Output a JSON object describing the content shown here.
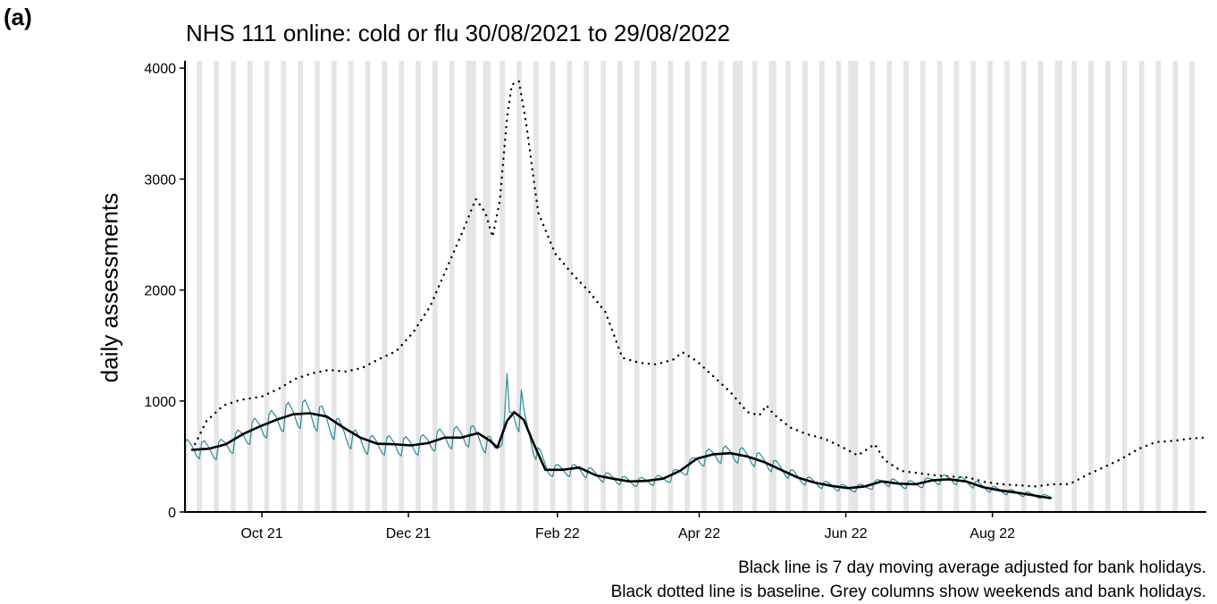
{
  "panel_label": "(a)",
  "caption": {
    "line1": "Black line is 7 day moving average adjusted for bank holidays.",
    "line2": "Black dotted line is baseline. Grey columns show weekends and bank holidays."
  },
  "colors": {
    "daily": "#2a8a99",
    "moving_average": "#000000",
    "baseline": "#000000",
    "weekend_columns": "#e5e5e5"
  },
  "chart_data": {
    "type": "line",
    "title": "NHS 111 online: cold or flu 30/08/2021 to 29/08/2022",
    "xlabel": "",
    "ylabel": "daily assessments",
    "x_range": [
      "2021-08-30",
      "2022-10-29"
    ],
    "ylim": [
      0,
      4050
    ],
    "y_ticks": [
      0,
      1000,
      2000,
      3000,
      4000
    ],
    "x_ticks": [
      {
        "date": "2021-10-01",
        "label": "Oct 21"
      },
      {
        "date": "2021-12-01",
        "label": "Dec 21"
      },
      {
        "date": "2022-02-01",
        "label": "Feb 22"
      },
      {
        "date": "2022-04-01",
        "label": "Apr 22"
      },
      {
        "date": "2022-06-01",
        "label": "Jun 22"
      },
      {
        "date": "2022-08-01",
        "label": "Aug 22"
      }
    ],
    "grid": false,
    "weekend_columns": true,
    "bank_holidays": [
      "2021-08-30",
      "2021-12-27",
      "2021-12-28",
      "2022-01-03",
      "2022-04-15",
      "2022-04-18",
      "2022-05-02",
      "2022-06-02",
      "2022-06-03",
      "2022-08-29"
    ],
    "series": [
      {
        "style": "dotted",
        "points": [
          [
            "2021-09-02",
            560
          ],
          [
            "2021-09-08",
            820
          ],
          [
            "2021-09-15",
            960
          ],
          [
            "2021-09-22",
            1010
          ],
          [
            "2021-10-01",
            1040
          ],
          [
            "2021-10-08",
            1110
          ],
          [
            "2021-10-15",
            1200
          ],
          [
            "2021-10-22",
            1250
          ],
          [
            "2021-10-29",
            1280
          ],
          [
            "2021-11-05",
            1265
          ],
          [
            "2021-11-12",
            1300
          ],
          [
            "2021-11-19",
            1380
          ],
          [
            "2021-11-26",
            1450
          ],
          [
            "2021-12-03",
            1620
          ],
          [
            "2021-12-10",
            1850
          ],
          [
            "2021-12-17",
            2200
          ],
          [
            "2021-12-24",
            2550
          ],
          [
            "2021-12-29",
            2820
          ],
          [
            "2022-01-02",
            2700
          ],
          [
            "2022-01-05",
            2480
          ],
          [
            "2022-01-08",
            2800
          ],
          [
            "2022-01-11",
            3550
          ],
          [
            "2022-01-13",
            3850
          ],
          [
            "2022-01-16",
            3880
          ],
          [
            "2022-01-19",
            3500
          ],
          [
            "2022-01-24",
            2700
          ],
          [
            "2022-01-31",
            2330
          ],
          [
            "2022-02-07",
            2150
          ],
          [
            "2022-02-14",
            1990
          ],
          [
            "2022-02-21",
            1800
          ],
          [
            "2022-02-28",
            1390
          ],
          [
            "2022-03-07",
            1345
          ],
          [
            "2022-03-14",
            1330
          ],
          [
            "2022-03-21",
            1370
          ],
          [
            "2022-03-25",
            1440
          ],
          [
            "2022-03-31",
            1360
          ],
          [
            "2022-04-07",
            1220
          ],
          [
            "2022-04-14",
            1080
          ],
          [
            "2022-04-21",
            900
          ],
          [
            "2022-04-26",
            870
          ],
          [
            "2022-04-29",
            960
          ],
          [
            "2022-05-02",
            880
          ],
          [
            "2022-05-09",
            760
          ],
          [
            "2022-05-16",
            700
          ],
          [
            "2022-05-23",
            660
          ],
          [
            "2022-05-30",
            590
          ],
          [
            "2022-06-06",
            510
          ],
          [
            "2022-06-13",
            610
          ],
          [
            "2022-06-17",
            470
          ],
          [
            "2022-06-24",
            370
          ],
          [
            "2022-07-01",
            350
          ],
          [
            "2022-07-08",
            330
          ],
          [
            "2022-07-15",
            320
          ],
          [
            "2022-07-22",
            310
          ],
          [
            "2022-07-29",
            270
          ],
          [
            "2022-08-05",
            250
          ],
          [
            "2022-08-12",
            240
          ],
          [
            "2022-08-19",
            230
          ],
          [
            "2022-08-26",
            250
          ],
          [
            "2022-09-02",
            250
          ],
          [
            "2022-09-09",
            330
          ],
          [
            "2022-09-16",
            400
          ],
          [
            "2022-09-23",
            470
          ],
          [
            "2022-10-01",
            570
          ],
          [
            "2022-10-08",
            630
          ],
          [
            "2022-10-15",
            640
          ],
          [
            "2022-10-22",
            660
          ],
          [
            "2022-10-28",
            670
          ]
        ]
      },
      {
        "style": "daily",
        "base": [
          [
            "2021-08-30",
            580
          ],
          [
            "2021-09-12",
            560
          ],
          [
            "2021-09-20",
            640
          ],
          [
            "2021-09-27",
            740
          ],
          [
            "2021-10-04",
            800
          ],
          [
            "2021-10-11",
            870
          ],
          [
            "2021-10-18",
            900
          ],
          [
            "2021-10-25",
            860
          ],
          [
            "2021-11-01",
            760
          ],
          [
            "2021-11-08",
            660
          ],
          [
            "2021-11-15",
            610
          ],
          [
            "2021-11-22",
            610
          ],
          [
            "2021-11-29",
            600
          ],
          [
            "2021-12-06",
            610
          ],
          [
            "2021-12-13",
            660
          ],
          [
            "2021-12-20",
            680
          ],
          [
            "2021-12-27",
            700
          ],
          [
            "2022-01-03",
            620
          ],
          [
            "2022-01-06",
            560
          ],
          [
            "2022-01-10",
            780
          ],
          [
            "2022-01-14",
            900
          ],
          [
            "2022-01-18",
            820
          ],
          [
            "2022-01-22",
            600
          ],
          [
            "2022-01-28",
            380
          ],
          [
            "2022-02-04",
            380
          ],
          [
            "2022-02-11",
            380
          ],
          [
            "2022-02-18",
            330
          ],
          [
            "2022-02-25",
            300
          ],
          [
            "2022-03-04",
            270
          ],
          [
            "2022-03-11",
            280
          ],
          [
            "2022-03-18",
            300
          ],
          [
            "2022-03-25",
            370
          ],
          [
            "2022-04-01",
            480
          ],
          [
            "2022-04-08",
            520
          ],
          [
            "2022-04-15",
            530
          ],
          [
            "2022-04-22",
            500
          ],
          [
            "2022-04-29",
            450
          ],
          [
            "2022-05-06",
            380
          ],
          [
            "2022-05-13",
            300
          ],
          [
            "2022-05-20",
            260
          ],
          [
            "2022-05-27",
            230
          ],
          [
            "2022-06-03",
            210
          ],
          [
            "2022-06-10",
            230
          ],
          [
            "2022-06-17",
            280
          ],
          [
            "2022-06-24",
            250
          ],
          [
            "2022-07-01",
            250
          ],
          [
            "2022-07-08",
            290
          ],
          [
            "2022-07-15",
            300
          ],
          [
            "2022-07-22",
            270
          ],
          [
            "2022-07-29",
            220
          ],
          [
            "2022-08-05",
            190
          ],
          [
            "2022-08-12",
            170
          ],
          [
            "2022-08-19",
            150
          ],
          [
            "2022-08-26",
            130
          ]
        ],
        "spikes": [
          [
            "2022-01-11",
            1250
          ],
          [
            "2022-01-12",
            900
          ],
          [
            "2022-01-17",
            1100
          ]
        ]
      },
      {
        "style": "solid",
        "points": [
          [
            "2021-09-02",
            560
          ],
          [
            "2021-09-09",
            570
          ],
          [
            "2021-09-16",
            610
          ],
          [
            "2021-09-23",
            700
          ],
          [
            "2021-09-30",
            770
          ],
          [
            "2021-10-07",
            830
          ],
          [
            "2021-10-14",
            880
          ],
          [
            "2021-10-21",
            890
          ],
          [
            "2021-10-28",
            860
          ],
          [
            "2021-11-04",
            760
          ],
          [
            "2021-11-11",
            670
          ],
          [
            "2021-11-18",
            615
          ],
          [
            "2021-11-25",
            610
          ],
          [
            "2021-12-02",
            600
          ],
          [
            "2021-12-09",
            620
          ],
          [
            "2021-12-16",
            670
          ],
          [
            "2021-12-23",
            670
          ],
          [
            "2021-12-30",
            710
          ],
          [
            "2022-01-04",
            640
          ],
          [
            "2022-01-07",
            580
          ],
          [
            "2022-01-11",
            820
          ],
          [
            "2022-01-14",
            900
          ],
          [
            "2022-01-18",
            830
          ],
          [
            "2022-01-22",
            620
          ],
          [
            "2022-01-27",
            380
          ],
          [
            "2022-02-03",
            380
          ],
          [
            "2022-02-10",
            400
          ],
          [
            "2022-02-17",
            330
          ],
          [
            "2022-02-24",
            300
          ],
          [
            "2022-03-03",
            275
          ],
          [
            "2022-03-10",
            280
          ],
          [
            "2022-03-17",
            300
          ],
          [
            "2022-03-24",
            370
          ],
          [
            "2022-03-31",
            480
          ],
          [
            "2022-04-07",
            520
          ],
          [
            "2022-04-14",
            530
          ],
          [
            "2022-04-21",
            500
          ],
          [
            "2022-04-28",
            450
          ],
          [
            "2022-05-05",
            380
          ],
          [
            "2022-05-12",
            310
          ],
          [
            "2022-05-19",
            265
          ],
          [
            "2022-05-26",
            235
          ],
          [
            "2022-06-02",
            215
          ],
          [
            "2022-06-09",
            230
          ],
          [
            "2022-06-16",
            275
          ],
          [
            "2022-06-23",
            255
          ],
          [
            "2022-06-30",
            250
          ],
          [
            "2022-07-07",
            285
          ],
          [
            "2022-07-14",
            295
          ],
          [
            "2022-07-21",
            275
          ],
          [
            "2022-07-28",
            225
          ],
          [
            "2022-08-04",
            195
          ],
          [
            "2022-08-11",
            175
          ],
          [
            "2022-08-18",
            150
          ],
          [
            "2022-08-25",
            125
          ]
        ]
      }
    ]
  }
}
